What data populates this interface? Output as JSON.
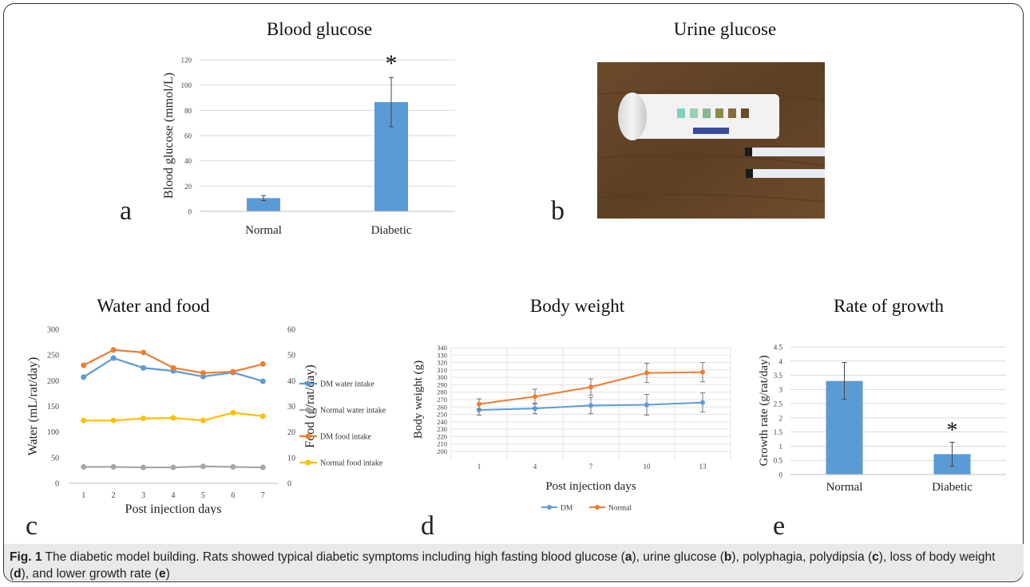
{
  "figure": {
    "panel_labels": [
      "a",
      "b",
      "c",
      "d",
      "e"
    ],
    "caption": {
      "lead": "Fig. 1",
      "segments": [
        {
          "text": " The diabetic model building. Rats showed typical diabetic symptoms including high fasting blood glucose (",
          "bold": false
        },
        {
          "text": "a",
          "bold": true
        },
        {
          "text": "), urine glucose (",
          "bold": false
        },
        {
          "text": "b",
          "bold": true
        },
        {
          "text": "), polyphagia, polydipsia (",
          "bold": false
        },
        {
          "text": "c",
          "bold": true
        },
        {
          "text": "), loss of body weight (",
          "bold": false
        },
        {
          "text": "d",
          "bold": true
        },
        {
          "text": "), and lower growth rate (",
          "bold": false
        },
        {
          "text": "e",
          "bold": true
        },
        {
          "text": ")",
          "bold": false
        }
      ]
    },
    "photo_b": {
      "title": "Urine glucose"
    }
  },
  "chart_data": [
    {
      "id": "a",
      "type": "bar",
      "title": "Blood glucose",
      "ylabel": "Blood glucose (mmol/L)",
      "xlabel": "",
      "categories": [
        "Normal",
        "Diabetic"
      ],
      "values": [
        10.5,
        86.5
      ],
      "errors": [
        2.0,
        19.5
      ],
      "ylim": [
        0,
        120
      ],
      "yticks": [
        0,
        20,
        40,
        60,
        80,
        100,
        120
      ],
      "significance": [
        "",
        "*"
      ],
      "grid": true,
      "color": "#5b9bd5"
    },
    {
      "id": "c",
      "type": "line",
      "title": "Water and food",
      "xlabel": "Post injection days",
      "ylabel": "Water (mL/rat/day)",
      "y2label": "Food (g/rat/day)",
      "x": [
        1,
        2,
        3,
        4,
        5,
        6,
        7
      ],
      "ylim": [
        0,
        300
      ],
      "yticks": [
        0,
        50,
        100,
        150,
        200,
        250,
        300
      ],
      "y2lim": [
        0,
        60
      ],
      "y2ticks": [
        0,
        10,
        20,
        30,
        40,
        50,
        60
      ],
      "legend": "right",
      "series": [
        {
          "name": "DM water intake",
          "axis": "left",
          "color": "#5b9bd5",
          "values": [
            207,
            244,
            225,
            219,
            208,
            216,
            199
          ]
        },
        {
          "name": "Normal water intake",
          "axis": "left",
          "color": "#a5a5a5",
          "values": [
            32,
            32,
            31,
            31,
            33,
            32,
            31
          ]
        },
        {
          "name": "DM food intake",
          "axis": "right",
          "color": "#ed7d31",
          "values": [
            46,
            52,
            51,
            45,
            43,
            43.5,
            46.5
          ]
        },
        {
          "name": "Normal food intake",
          "axis": "right",
          "color": "#ffc000",
          "values": [
            24.5,
            24.5,
            25.3,
            25.5,
            24.5,
            27.5,
            26.2
          ]
        }
      ]
    },
    {
      "id": "d",
      "type": "line",
      "title": "Body weight",
      "xlabel": "Post injection days",
      "ylabel": "Body weight (g)",
      "x": [
        1,
        4,
        7,
        10,
        13
      ],
      "ylim": [
        200,
        340
      ],
      "yticks": [
        200,
        210,
        220,
        230,
        240,
        250,
        260,
        270,
        280,
        290,
        300,
        310,
        320,
        330,
        340
      ],
      "legend": "bottom",
      "grid": true,
      "series": [
        {
          "name": "DM",
          "color": "#5b9bd5",
          "values": [
            256,
            258,
            262,
            263,
            266
          ],
          "errors": [
            7,
            7,
            11,
            14,
            13
          ]
        },
        {
          "name": "Normal",
          "color": "#ed7d31",
          "values": [
            264,
            274,
            287,
            306,
            307
          ],
          "errors": [
            7,
            10,
            11,
            13,
            13
          ]
        }
      ]
    },
    {
      "id": "e",
      "type": "bar",
      "title": "Rate of growth",
      "ylabel": "Growth rate (g/rat/day)",
      "xlabel": "",
      "categories": [
        "Normal",
        "Diabetic"
      ],
      "values": [
        3.3,
        0.72
      ],
      "errors": [
        0.65,
        0.42
      ],
      "ylim": [
        0,
        4.5
      ],
      "yticks": [
        0,
        0.5,
        1,
        1.5,
        2,
        2.5,
        3,
        3.5,
        4,
        4.5
      ],
      "significance": [
        "",
        "*"
      ],
      "grid": true,
      "color": "#5b9bd5"
    }
  ]
}
